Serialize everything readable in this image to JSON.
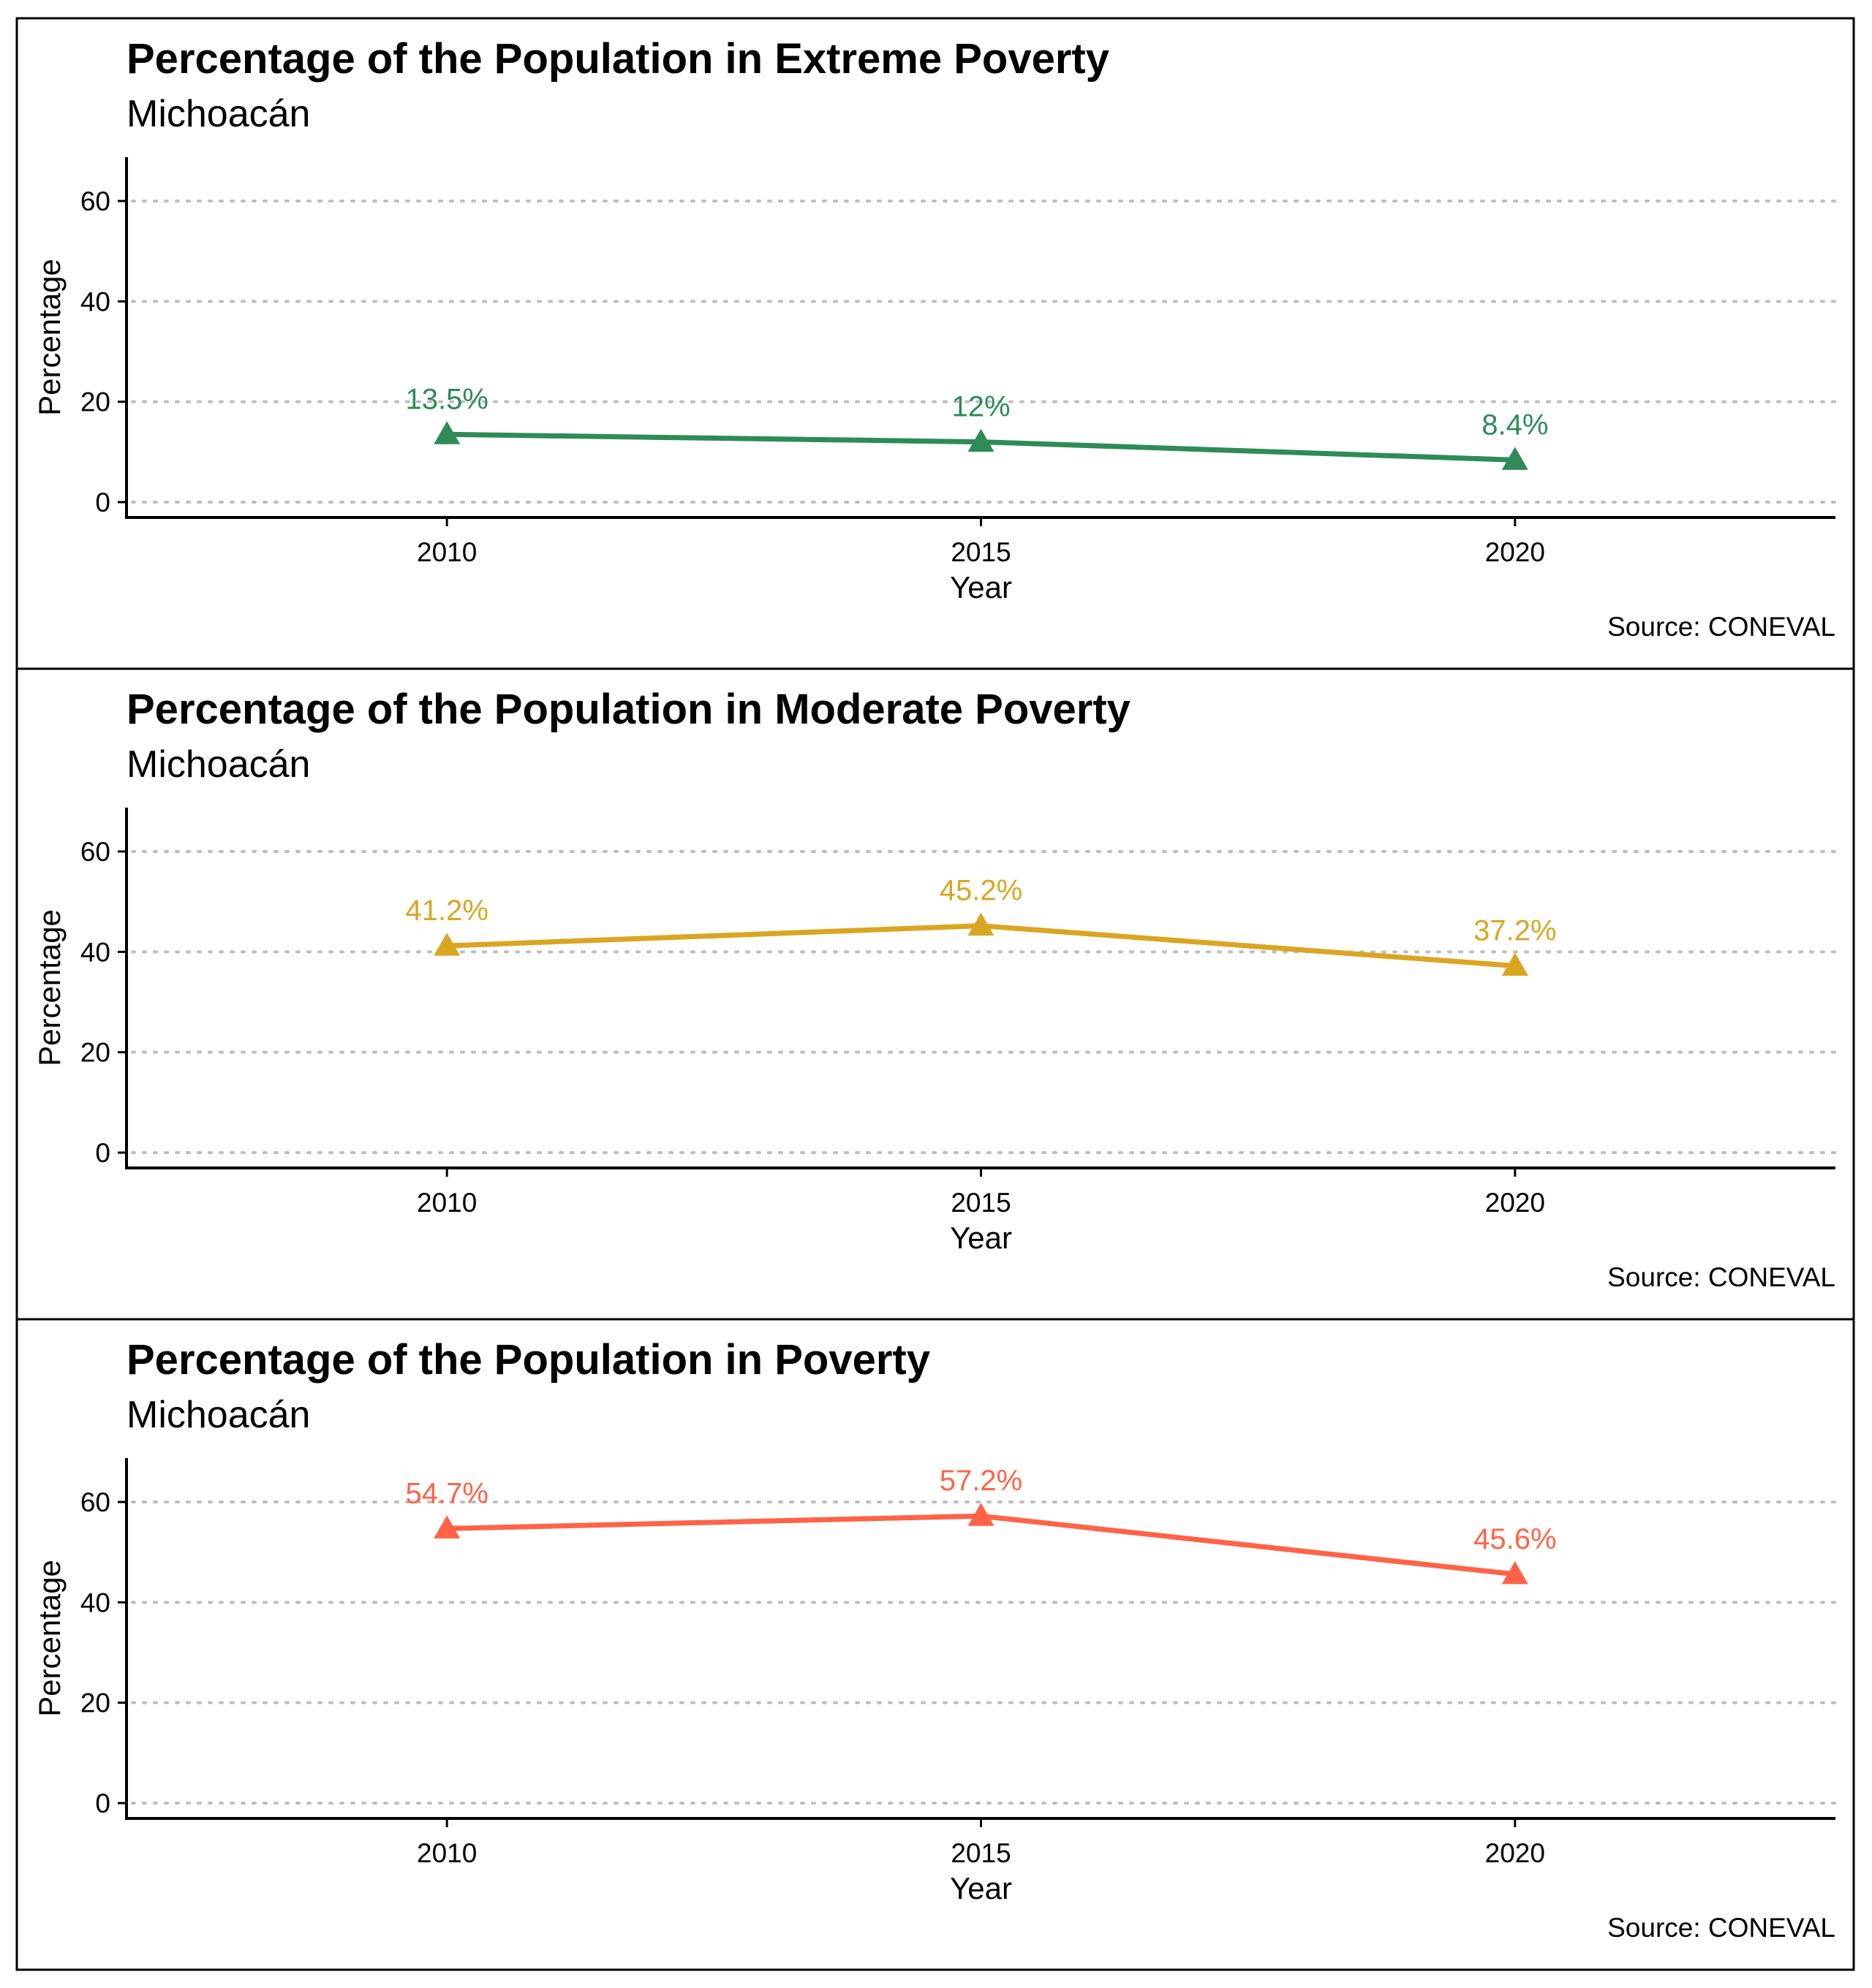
{
  "chart_data": [
    {
      "type": "line",
      "title": "Percentage of the Population in Extreme Poverty",
      "subtitle": "Michoacán",
      "xlabel": "Year",
      "ylabel": "Percentage",
      "caption": "Source: CONEVAL",
      "x": [
        2010,
        2015,
        2020
      ],
      "values": [
        13.5,
        12,
        8.4
      ],
      "data_labels": [
        "13.5%",
        "12%",
        "8.4%"
      ],
      "xlim": [
        2007,
        2023
      ],
      "ylim": [
        -3,
        69
      ],
      "yticks": [
        0,
        20,
        40,
        60
      ],
      "xticks": [
        2010,
        2015,
        2020
      ],
      "color": "#2e8b57",
      "marker": "triangle",
      "grid": "horizontal dotted"
    },
    {
      "type": "line",
      "title": "Percentage of the Population in Moderate Poverty",
      "subtitle": "Michoacán",
      "xlabel": "Year",
      "ylabel": "Percentage",
      "caption": "Source: CONEVAL",
      "x": [
        2010,
        2015,
        2020
      ],
      "values": [
        41.2,
        45.2,
        37.2
      ],
      "data_labels": [
        "41.2%",
        "45.2%",
        "37.2%"
      ],
      "xlim": [
        2007,
        2023
      ],
      "ylim": [
        -3,
        69
      ],
      "yticks": [
        0,
        20,
        40,
        60
      ],
      "xticks": [
        2010,
        2015,
        2020
      ],
      "color": "#daa520",
      "marker": "triangle",
      "grid": "horizontal dotted"
    },
    {
      "type": "line",
      "title": "Percentage of the Population in Poverty",
      "subtitle": "Michoacán",
      "xlabel": "Year",
      "ylabel": "Percentage",
      "caption": "Source: CONEVAL",
      "x": [
        2010,
        2015,
        2020
      ],
      "values": [
        54.7,
        57.2,
        45.6
      ],
      "data_labels": [
        "54.7%",
        "57.2%",
        "45.6%"
      ],
      "xlim": [
        2007,
        2023
      ],
      "ylim": [
        -3,
        69
      ],
      "yticks": [
        0,
        20,
        40,
        60
      ],
      "xticks": [
        2010,
        2015,
        2020
      ],
      "color": "#ff6347",
      "marker": "triangle",
      "grid": "horizontal dotted"
    }
  ]
}
